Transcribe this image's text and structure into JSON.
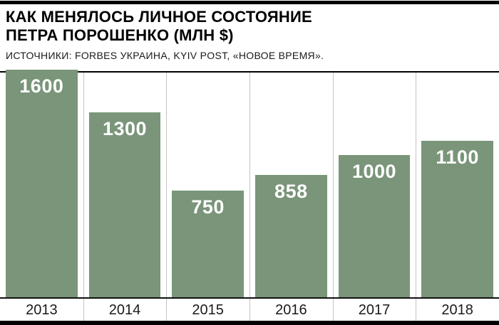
{
  "header": {
    "title_line1": "КАК МЕНЯЛОСЬ ЛИЧНОЕ СОСТОЯНИЕ",
    "title_line2": "ПЕТРА ПОРОШЕНКО (МЛН $)",
    "source": "ИСТОЧНИКИ: FORBES УКРАИНА, KYIV POST, «НОВОЕ ВРЕМЯ»."
  },
  "chart_data": {
    "type": "bar",
    "categories": [
      "2013",
      "2014",
      "2015",
      "2016",
      "2017",
      "2018"
    ],
    "values": [
      1600,
      1300,
      750,
      858,
      1000,
      1100
    ],
    "value_labels": [
      "1600",
      "1300",
      "750",
      "858",
      "1000",
      "1100"
    ],
    "title": "КАК МЕНЯЛОСЬ ЛИЧНОЕ СОСТОЯНИЕ ПЕТРА ПОРОШЕНКО (МЛН $)",
    "xlabel": "",
    "ylabel": "",
    "ylim": [
      0,
      1600
    ],
    "grid": "vertical-column-separators",
    "legend": "none",
    "value_label_position": "inside-top-center",
    "colors": {
      "bar": "#7a9579",
      "value_label": "#ffffff",
      "gridline": "#c5c5c5",
      "rule": "#000000",
      "axis_text": "#1a1a1a"
    }
  }
}
